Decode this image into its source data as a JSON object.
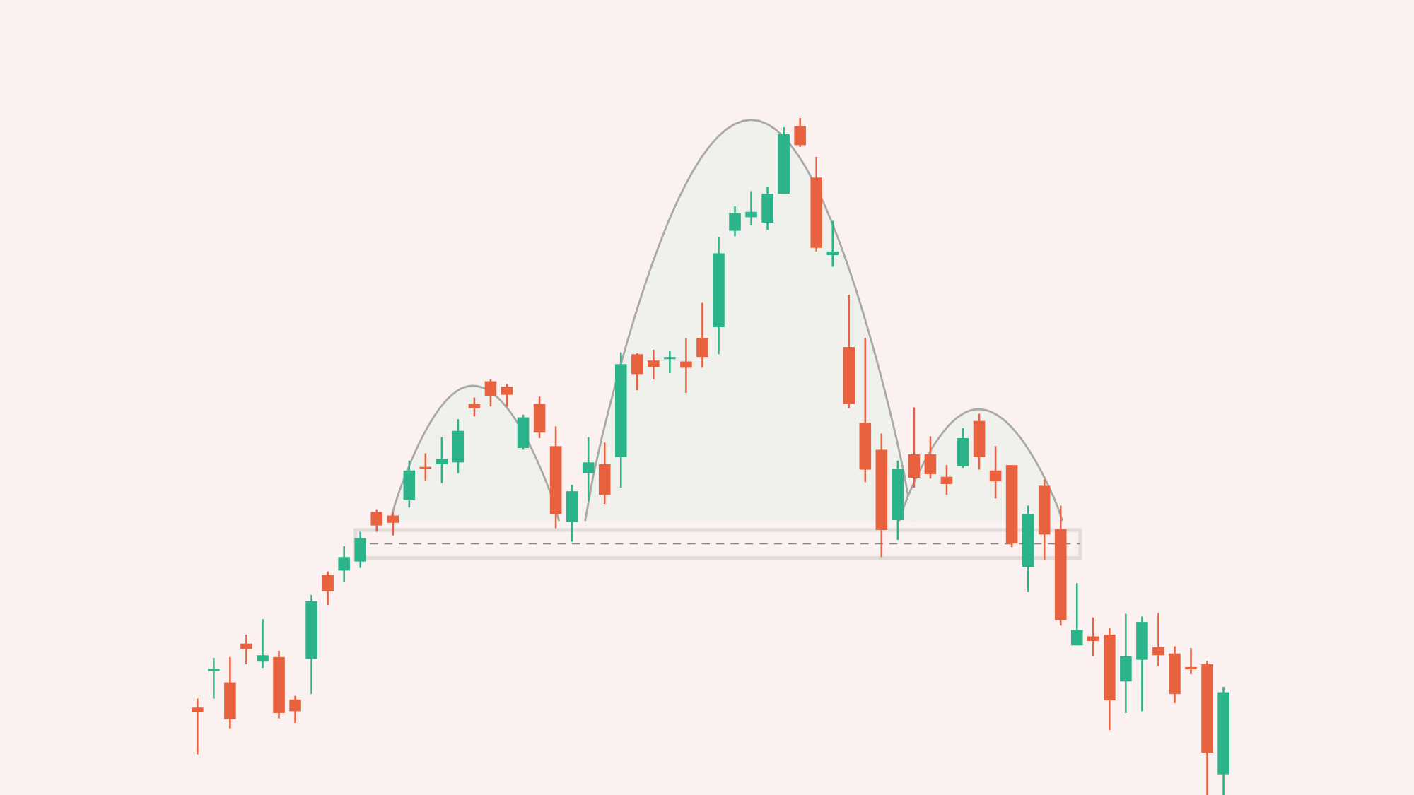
{
  "chart_data": {
    "type": "candlestick",
    "title": "",
    "xlabel": "",
    "ylabel": "",
    "grid": false,
    "legend": "none",
    "axes_visible": false,
    "colors": {
      "background": "#faf1f0",
      "up": "#2bb38a",
      "down": "#e8623f",
      "pattern_fill": "#f0f0ed",
      "pattern_stroke": "#a9a9a6",
      "neckline": "#8a827e",
      "neckline_band": "#e2dcd8"
    },
    "candle_fields": [
      "open",
      "high",
      "low",
      "close"
    ],
    "candles": [
      [
        21.5,
        22.5,
        16.3,
        21.0
      ],
      [
        25.6,
        27.0,
        22.5,
        25.8
      ],
      [
        24.3,
        27.1,
        19.2,
        20.2
      ],
      [
        28.6,
        29.6,
        26.3,
        28.0
      ],
      [
        26.6,
        31.3,
        25.9,
        27.3
      ],
      [
        27.1,
        27.8,
        20.3,
        20.9
      ],
      [
        22.4,
        22.8,
        19.8,
        21.1
      ],
      [
        26.9,
        34.0,
        23.0,
        33.3
      ],
      [
        36.2,
        36.6,
        32.9,
        34.4
      ],
      [
        36.7,
        39.4,
        35.4,
        38.2
      ],
      [
        37.7,
        41.0,
        37.0,
        40.3
      ],
      [
        43.2,
        43.5,
        41.0,
        41.7
      ],
      [
        42.8,
        43.2,
        40.6,
        42.0
      ],
      [
        44.5,
        48.9,
        43.7,
        47.8
      ],
      [
        48.2,
        49.7,
        46.7,
        48.0
      ],
      [
        48.5,
        51.5,
        46.4,
        49.1
      ],
      [
        48.7,
        53.5,
        47.5,
        52.2
      ],
      [
        55.2,
        55.9,
        53.8,
        54.7
      ],
      [
        57.7,
        57.9,
        54.9,
        56.1
      ],
      [
        57.1,
        57.4,
        54.9,
        56.2
      ],
      [
        50.3,
        54.0,
        50.1,
        53.7
      ],
      [
        55.2,
        56.0,
        51.4,
        52.0
      ],
      [
        50.5,
        52.7,
        41.4,
        43.0
      ],
      [
        42.1,
        46.2,
        39.9,
        45.5
      ],
      [
        47.5,
        51.5,
        44.4,
        48.7
      ],
      [
        48.5,
        50.9,
        44.1,
        45.1
      ],
      [
        49.3,
        60.9,
        45.9,
        59.6
      ],
      [
        60.7,
        60.8,
        56.7,
        58.5
      ],
      [
        60.0,
        61.2,
        57.9,
        59.3
      ],
      [
        60.2,
        61.1,
        58.6,
        60.4
      ],
      [
        59.9,
        62.5,
        56.4,
        59.2
      ],
      [
        62.5,
        66.4,
        59.2,
        60.4
      ],
      [
        63.7,
        73.7,
        60.7,
        71.9
      ],
      [
        74.4,
        77.1,
        73.8,
        76.4
      ],
      [
        75.9,
        78.8,
        75.0,
        76.5
      ],
      [
        75.3,
        79.3,
        74.5,
        78.5
      ],
      [
        78.5,
        85.9,
        78.5,
        85.1
      ],
      [
        86.0,
        86.9,
        83.7,
        83.9
      ],
      [
        80.3,
        82.6,
        72.1,
        72.5
      ],
      [
        71.7,
        75.5,
        70.4,
        72.1
      ],
      [
        61.5,
        67.3,
        54.7,
        55.2
      ],
      [
        53.1,
        62.5,
        46.5,
        47.9
      ],
      [
        50.1,
        51.9,
        38.2,
        41.2
      ],
      [
        42.3,
        48.9,
        40.1,
        48.0
      ],
      [
        49.6,
        54.8,
        45.9,
        47.0
      ],
      [
        49.6,
        51.6,
        46.9,
        47.4
      ],
      [
        47.1,
        48.4,
        45.1,
        46.3
      ],
      [
        48.3,
        52.5,
        48.1,
        51.4
      ],
      [
        53.3,
        54.1,
        47.9,
        49.3
      ],
      [
        47.8,
        50.5,
        44.7,
        46.6
      ],
      [
        48.4,
        48.4,
        39.3,
        39.7
      ],
      [
        37.1,
        43.9,
        34.3,
        43.0
      ],
      [
        46.1,
        46.8,
        37.9,
        40.7
      ],
      [
        41.3,
        43.9,
        30.6,
        31.2
      ],
      [
        28.4,
        35.3,
        28.4,
        30.1
      ],
      [
        29.4,
        31.5,
        27.2,
        28.9
      ],
      [
        29.6,
        30.3,
        19.0,
        22.3
      ],
      [
        24.4,
        31.9,
        20.9,
        27.2
      ],
      [
        26.8,
        31.6,
        21.1,
        31.0
      ],
      [
        28.2,
        32.0,
        26.1,
        27.3
      ],
      [
        27.5,
        28.3,
        22.0,
        23.0
      ],
      [
        26.0,
        28.1,
        25.2,
        25.8
      ],
      [
        26.3,
        26.7,
        11.8,
        16.5
      ],
      [
        14.1,
        23.8,
        11.8,
        23.2
      ]
    ],
    "pattern": {
      "name": "",
      "base_price": 42.2,
      "humps": [
        {
          "part": "left-shoulder",
          "start_index": 11.85,
          "peak_index": 16.9,
          "end_index": 22.2,
          "peak_price": 57.2
        },
        {
          "part": "head",
          "start_index": 23.8,
          "peak_index": 34.0,
          "end_index": 43.9,
          "peak_price": 86.7
        },
        {
          "part": "right-shoulder",
          "start_index": 43.1,
          "peak_index": 47.95,
          "end_index": 53.1,
          "peak_price": 54.6
        }
      ],
      "neckline": {
        "price": 39.7,
        "band": [
          38.1,
          41.2
        ],
        "start_index": 9.7,
        "end_index": 54.2,
        "style": "dashed"
      }
    }
  }
}
